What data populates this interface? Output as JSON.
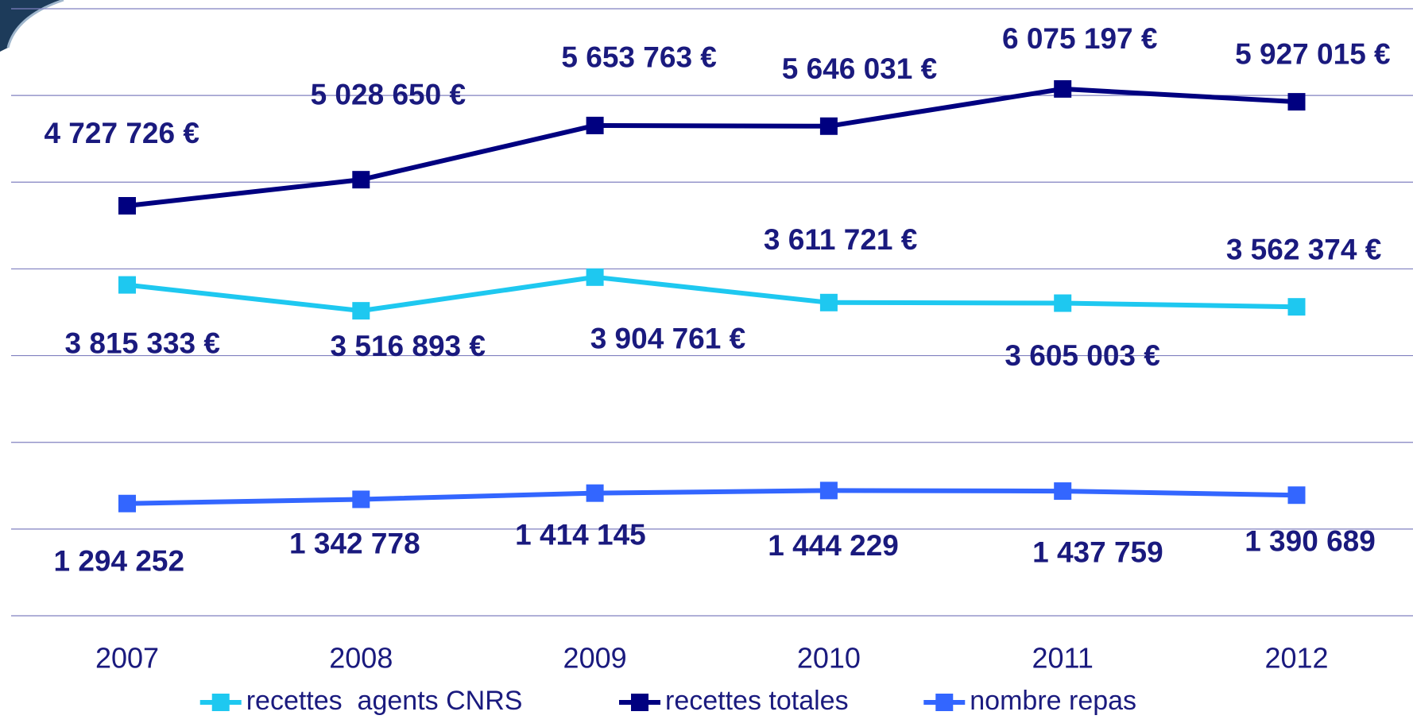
{
  "chart_data": {
    "type": "line",
    "categories": [
      "2007",
      "2008",
      "2009",
      "2010",
      "2011",
      "2012"
    ],
    "series": [
      {
        "name": "recettes  agents CNRS",
        "color": "#1ec8f0",
        "values": [
          3815333,
          3516893,
          3904761,
          3611721,
          3605003,
          3562374
        ],
        "value_labels": [
          "3 815 333 €",
          "3 516 893 €",
          "3 904 761 €",
          "3 611 721 €",
          "3 605 003 €",
          "3 562 374 €"
        ]
      },
      {
        "name": "recettes totales",
        "color": "#000080",
        "values": [
          4727726,
          5028650,
          5653763,
          5646031,
          6075197,
          5927015
        ],
        "value_labels": [
          "4 727 726 €",
          "5 028 650 €",
          "5 653 763 €",
          "5 646 031 €",
          "6 075 197 €",
          "5 927 015 €"
        ]
      },
      {
        "name": "nombre repas",
        "color": "#3366ff",
        "values": [
          1294252,
          1342778,
          1414145,
          1444229,
          1437759,
          1390689
        ],
        "value_labels": [
          "1 294 252",
          "1 342 778",
          "1 414 145",
          "1 444 229",
          "1 437 759",
          "1 390 689"
        ]
      }
    ],
    "ylim": [
      0,
      7000000
    ],
    "yticks": [
      0,
      1000000,
      2000000,
      3000000,
      4000000,
      5000000,
      6000000,
      7000000
    ],
    "grid": true
  }
}
